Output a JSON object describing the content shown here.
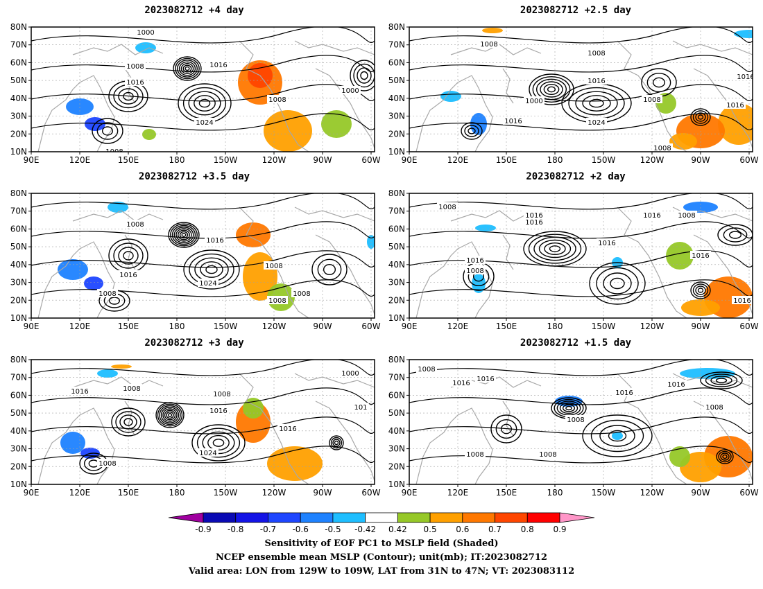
{
  "panels": [
    {
      "title": "2023082712  +4 day"
    },
    {
      "title": "2023082712  +2.5 day"
    },
    {
      "title": "2023082712  +3.5 day"
    },
    {
      "title": "2023082712  +2 day"
    },
    {
      "title": "2023082712  +3 day"
    },
    {
      "title": "2023082712  +1.5 day"
    }
  ],
  "axes": {
    "lat_labels": [
      "80N",
      "70N",
      "60N",
      "50N",
      "40N",
      "30N",
      "20N",
      "10N"
    ],
    "lon_labels": [
      "90E",
      "120E",
      "150E",
      "180",
      "150W",
      "120W",
      "90W",
      "60W"
    ]
  },
  "contour_labels": {
    "p0": [
      "1000",
      "1008",
      "1016",
      "1016",
      "1024",
      "1008",
      "1000",
      "1008"
    ],
    "p1": [
      "1008",
      "1008",
      "1016",
      "1024",
      "1000",
      "1016",
      "1016",
      "1008",
      "1016",
      "1008"
    ],
    "p2": [
      "1008",
      "1016",
      "1016",
      "1024",
      "1008",
      "1008",
      "1008",
      "1008"
    ],
    "p3": [
      "1008",
      "1016",
      "1016",
      "1016",
      "1008",
      "1016",
      "1016",
      "1008",
      "1016",
      "1016"
    ],
    "p4": [
      "1016",
      "1008",
      "1008",
      "1016",
      "1024",
      "1016",
      "1008",
      "1000",
      "101"
    ],
    "p5": [
      "1008",
      "1016",
      "1016",
      "1016",
      "1008",
      "1008",
      "1008",
      "1016",
      "1008"
    ]
  },
  "colorbar": {
    "colors": [
      "#a000a0",
      "#0a0ab4",
      "#1414e6",
      "#1e46ff",
      "#1e82ff",
      "#1ebeff",
      "#ffffff",
      "#96c828",
      "#ffa000",
      "#ff7800",
      "#ff4600",
      "#ff0000",
      "#ff96c8"
    ],
    "labels": [
      "-0.9",
      "-0.8",
      "-0.7",
      "-0.6",
      "-0.5",
      "-0.42",
      "0.42",
      "0.5",
      "0.6",
      "0.7",
      "0.8",
      "0.9"
    ]
  },
  "footer": {
    "line1": "Sensitivity of EOF PC1 to MSLP field (Shaded)",
    "line2": "NCEP ensemble mean MSLP (Contour); unit(mb); IT:2023082712",
    "line3": "Valid area: LON from 129W to 109W, LAT from 31N to 47N; VT: 2023083112"
  }
}
